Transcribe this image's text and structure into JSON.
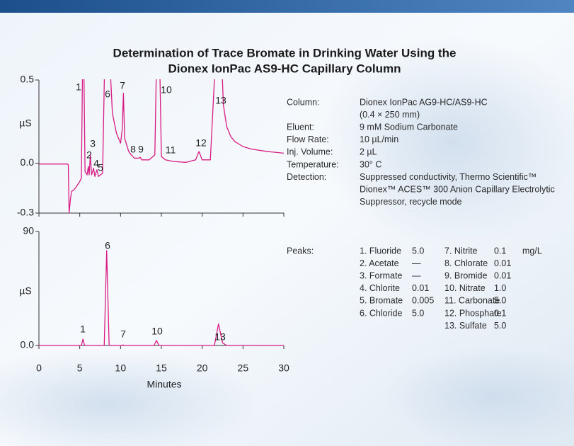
{
  "title": [
    "Determination of Trace Bromate in Drinking Water Using the",
    "Dionex IonPac AS9-HC Capillary Column"
  ],
  "chart_data": [
    {
      "type": "line",
      "y_label": "µS",
      "xlim": [
        0,
        30
      ],
      "ylim": [
        -0.3,
        0.5
      ],
      "yticks": [
        -0.3,
        {
          "value": 0,
          "label": "0.0"
        },
        0.5
      ],
      "x": [
        0,
        3.5,
        3.6,
        3.7,
        3.85,
        4.0,
        4.3,
        4.6,
        5.0,
        5.2,
        5.35,
        5.5,
        5.65,
        5.9,
        6.05,
        6.15,
        6.3,
        6.45,
        6.7,
        6.85,
        7.1,
        7.3,
        7.8,
        8.05,
        8.7,
        9.0,
        9.5,
        10.0,
        10.2,
        10.35,
        10.5,
        11.0,
        11.3,
        11.5,
        11.7,
        12.2,
        12.4,
        12.6,
        13.5,
        14.2,
        14.4,
        14.8,
        15.0,
        15.5,
        16.0,
        16.5,
        18.0,
        19.2,
        19.6,
        20.0,
        21.0,
        21.6,
        22.4,
        22.6,
        23.0,
        23.5,
        24.0,
        25.0,
        26.0,
        28.0,
        30.0
      ],
      "series": [
        {
          "color": "#d81b84",
          "values": [
            -0.005,
            -0.005,
            -0.01,
            -0.3,
            -0.22,
            -0.17,
            -0.16,
            -0.14,
            -0.11,
            -0.09,
            0.6,
            0.6,
            -0.05,
            -0.07,
            -0.02,
            -0.07,
            0.05,
            -0.07,
            -0.03,
            -0.08,
            -0.04,
            -0.08,
            -0.06,
            0.6,
            0.6,
            0.3,
            0.18,
            0.12,
            0.2,
            0.42,
            0.15,
            0.07,
            0.05,
            0.04,
            0.03,
            0.03,
            0.035,
            0.02,
            0.02,
            0.05,
            0.6,
            0.6,
            0.04,
            0.02,
            0.015,
            0.01,
            0.005,
            0.02,
            0.07,
            0.02,
            0.02,
            0.6,
            0.6,
            0.35,
            0.22,
            0.16,
            0.13,
            0.1,
            0.085,
            0.07,
            0.06
          ]
        }
      ],
      "annotations": [
        "1",
        "2",
        "3",
        "4",
        "5",
        "6",
        "7",
        "8",
        "9",
        "10",
        "11",
        "12",
        "13"
      ]
    },
    {
      "type": "line",
      "y_label": "µS",
      "x_label": "Minutes",
      "xlim": [
        0,
        30
      ],
      "xticks": [
        0,
        5,
        10,
        15,
        20,
        25,
        30
      ],
      "ylim": [
        0,
        90
      ],
      "yticks": [
        {
          "value": 0,
          "label": "0.0"
        },
        90
      ],
      "x": [
        0,
        5.2,
        5.4,
        5.6,
        8.0,
        8.3,
        8.6,
        10.2,
        10.3,
        10.4,
        14.1,
        14.4,
        14.7,
        21.5,
        22.0,
        22.5,
        23.0,
        30
      ],
      "series": [
        {
          "color": "#d81b84",
          "values": [
            0,
            0,
            5,
            0,
            0,
            75,
            0,
            0,
            0.5,
            0,
            0,
            4,
            0,
            0,
            17,
            2,
            0,
            0
          ]
        }
      ],
      "annotations": [
        "1",
        "6",
        "7",
        "10",
        "13"
      ]
    }
  ],
  "parameters": [
    {
      "label": "Column:",
      "value": [
        "Dionex IonPac AG9-HC/AS9-HC",
        "(0.4 × 250 mm)"
      ]
    },
    {
      "label": "Eluent:",
      "value": [
        "9 mM Sodium Carbonate"
      ]
    },
    {
      "label": "Flow Rate:",
      "value": [
        "10 µL/min"
      ]
    },
    {
      "label": "Inj. Volume:",
      "value": [
        "2 µL"
      ]
    },
    {
      "label": "Temperature:",
      "value": [
        "30° C"
      ]
    },
    {
      "label": "Detection:",
      "value": [
        "Suppressed conductivity, Thermo Scientific™",
        "Dionex™ ACES™ 300 Anion Capillary Electrolytic",
        "Suppressor, recycle mode"
      ]
    }
  ],
  "peaks": {
    "label": "Peaks:",
    "unit": "mg/L",
    "rows": [
      {
        "name": "1. Fluoride",
        "conc": "5.0"
      },
      {
        "name": "2. Acetate",
        "conc": "—"
      },
      {
        "name": "3. Formate",
        "conc": "—"
      },
      {
        "name": "4. Chlorite",
        "conc": "0.01"
      },
      {
        "name": "5. Bromate",
        "conc": "0.005"
      },
      {
        "name": "6. Chloride",
        "conc": "5.0"
      },
      {
        "name": "7. Nitrite",
        "conc": "0.1"
      },
      {
        "name": "8. Chlorate",
        "conc": "0.01"
      },
      {
        "name": "9. Bromide",
        "conc": "0.01"
      },
      {
        "name": "10. Nitrate",
        "conc": "1.0"
      },
      {
        "name": "11. Carbonate",
        "conc": "5.0"
      },
      {
        "name": "12. Phosphate",
        "conc": "0.1"
      },
      {
        "name": "13. Sulfate",
        "conc": "5.0"
      }
    ]
  }
}
